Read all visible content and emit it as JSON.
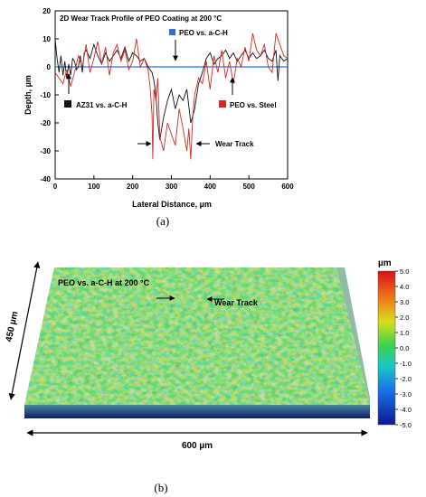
{
  "panel_a_label": "(a)",
  "panel_b_label": "(b)",
  "chart_data": [
    {
      "type": "line",
      "title": "2D Wear Track Profile of PEO Coating at 200 °C",
      "xlabel": "Lateral Distance, µm",
      "ylabel": "Depth, µm",
      "xlim": [
        0,
        600
      ],
      "ylim": [
        -40,
        20
      ],
      "xticks": [
        "0",
        "100",
        "200",
        "300",
        "400",
        "500",
        "600"
      ],
      "yticks": [
        "20",
        "10",
        "0",
        "-10",
        "-20",
        "-30",
        "-40"
      ],
      "grid": false,
      "series": [
        {
          "name": "AZ31 vs. a-C-H",
          "color": "#111111",
          "x": [
            0,
            5,
            10,
            15,
            20,
            25,
            30,
            35,
            40,
            45,
            50,
            55,
            60,
            65,
            70,
            75,
            80,
            90,
            100,
            110,
            120,
            130,
            140,
            150,
            160,
            170,
            180,
            190,
            200,
            210,
            220,
            230,
            240,
            250,
            255,
            260,
            265,
            270,
            280,
            290,
            300,
            310,
            320,
            330,
            340,
            350,
            360,
            370,
            380,
            390,
            400,
            410,
            420,
            430,
            440,
            450,
            460,
            470,
            480,
            490,
            500,
            510,
            520,
            530,
            540,
            550,
            560,
            570,
            575,
            580,
            590,
            600
          ],
          "y": [
            10,
            3,
            -2,
            4,
            -3,
            2,
            -4,
            1,
            -3,
            3,
            2,
            -1,
            0,
            4,
            -2,
            5,
            6,
            3,
            8,
            4,
            1,
            5,
            2,
            4,
            6,
            3,
            7,
            2,
            5,
            4,
            2,
            3,
            0,
            -2,
            -5,
            -10,
            -20,
            -26,
            -18,
            -12,
            -8,
            -15,
            -10,
            -12,
            -8,
            -20,
            -15,
            -6,
            -2,
            3,
            5,
            1,
            3,
            4,
            6,
            3,
            5,
            2,
            4,
            6,
            3,
            5,
            3,
            4,
            6,
            3,
            2,
            6,
            -5,
            4,
            2,
            3
          ]
        },
        {
          "name": "PEO vs. Steel",
          "color": "#d42a20",
          "x": [
            0,
            10,
            20,
            30,
            40,
            50,
            60,
            70,
            80,
            90,
            100,
            110,
            120,
            130,
            140,
            150,
            160,
            170,
            180,
            190,
            200,
            210,
            220,
            230,
            240,
            245,
            250,
            252,
            255,
            260,
            265,
            270,
            280,
            290,
            300,
            310,
            320,
            330,
            340,
            345,
            350,
            355,
            360,
            370,
            380,
            390,
            400,
            410,
            420,
            430,
            440,
            450,
            460,
            470,
            480,
            490,
            500,
            510,
            520,
            530,
            540,
            550,
            560,
            570,
            580,
            590,
            600
          ],
          "y": [
            -2,
            -4,
            -6,
            -1,
            -7,
            -2,
            4,
            0,
            8,
            -2,
            3,
            9,
            1,
            7,
            -3,
            5,
            8,
            2,
            6,
            -1,
            2,
            10,
            0,
            3,
            -1,
            -7,
            -17,
            -33,
            -8,
            -12,
            -4,
            -25,
            -30,
            -20,
            -24,
            -28,
            -15,
            -22,
            -30,
            -22,
            -33,
            -18,
            -10,
            -4,
            -6,
            2,
            -8,
            4,
            -2,
            6,
            -4,
            2,
            -6,
            3,
            0,
            7,
            2,
            12,
            6,
            4,
            8,
            0,
            -2,
            12,
            8,
            4,
            3
          ]
        },
        {
          "name": "PEO vs. a-C-H",
          "color": "#2e6fd8",
          "x": [
            0,
            600
          ],
          "y": [
            0,
            0
          ]
        }
      ],
      "annotations": [
        "Wear Track"
      ]
    },
    {
      "type": "heatmap",
      "title": "PEO vs. a-C-H at 200 °C",
      "annotation": "Wear Track",
      "x_extent_label": "600 µm",
      "y_extent_label": "450 µm",
      "colorbar": {
        "unit": "µm",
        "ticks": [
          "5.0",
          "4.0",
          "3.0",
          "2.0",
          "1.0",
          "0.0",
          "-1.0",
          "-2.0",
          "-3.0",
          "-4.0",
          "-5.0"
        ],
        "range": [
          -5,
          5
        ]
      }
    }
  ]
}
